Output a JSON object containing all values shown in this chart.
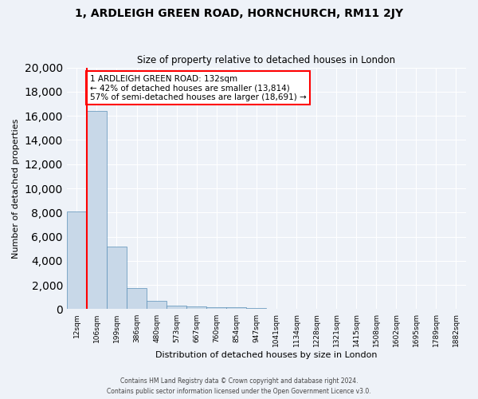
{
  "title": "1, ARDLEIGH GREEN ROAD, HORNCHURCH, RM11 2JY",
  "subtitle": "Size of property relative to detached houses in London",
  "xlabel": "Distribution of detached houses by size in London",
  "ylabel": "Number of detached properties",
  "bar_color": "#c8d8e8",
  "bar_edge_color": "#5a90b8",
  "bar_heights": [
    8100,
    16400,
    5200,
    1750,
    700,
    320,
    200,
    170,
    150,
    120,
    60,
    40,
    30,
    20,
    15,
    10,
    8,
    6,
    5,
    4
  ],
  "bar_labels": [
    "12sqm",
    "106sqm",
    "199sqm",
    "386sqm",
    "480sqm",
    "573sqm",
    "667sqm",
    "760sqm",
    "854sqm",
    "947sqm",
    "1041sqm",
    "1134sqm",
    "1228sqm",
    "1321sqm",
    "1415sqm",
    "1508sqm",
    "1602sqm",
    "1695sqm",
    "1789sqm",
    "1882sqm"
  ],
  "ylim": [
    0,
    20000
  ],
  "yticks": [
    0,
    2000,
    4000,
    6000,
    8000,
    10000,
    12000,
    14000,
    16000,
    18000,
    20000
  ],
  "red_line_x": 1.0,
  "annotation_text": "1 ARDLEIGH GREEN ROAD: 132sqm\n← 42% of detached houses are smaller (13,814)\n57% of semi-detached houses are larger (18,691) →",
  "annotation_box_color": "white",
  "annotation_border_color": "red",
  "footer_line1": "Contains HM Land Registry data © Crown copyright and database right 2024.",
  "footer_line2": "Contains public sector information licensed under the Open Government Licence v3.0.",
  "background_color": "#eef2f8",
  "grid_color": "white"
}
